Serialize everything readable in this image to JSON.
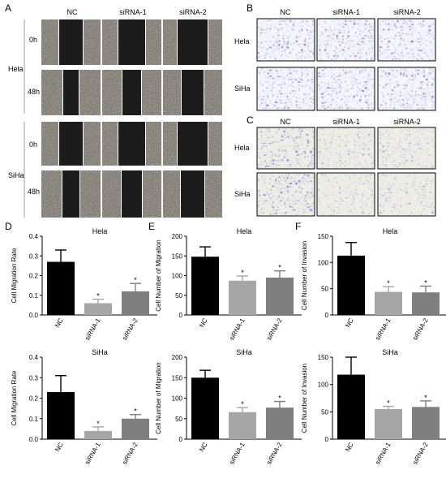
{
  "panels": {
    "A": {
      "letter": "A",
      "columns": [
        "NC",
        "siRNA-1",
        "siRNA-2"
      ],
      "rows": [
        {
          "cell_line": "Hela",
          "times": [
            "0h",
            "48h"
          ]
        },
        {
          "cell_line": "SiHa",
          "times": [
            "0h",
            "48h"
          ]
        }
      ]
    },
    "B": {
      "letter": "B",
      "columns": [
        "NC",
        "siRNA-1",
        "siRNA-2"
      ],
      "rows": [
        "Hela",
        "SiHa"
      ]
    },
    "C": {
      "letter": "C",
      "columns": [
        "NC",
        "siRNA-1",
        "siRNA-2"
      ],
      "rows": [
        "Hela",
        "SiHa"
      ]
    }
  },
  "colors": {
    "bar_nc": "#000000",
    "bar_sirna1": "#a6a6a6",
    "bar_sirna2": "#7f7f7f",
    "stain": "#3a3aa8",
    "wound_dark": "#1c1c1c",
    "wound_gray": "#6f6a63"
  },
  "chart_data": [
    {
      "panel": "D",
      "type": "bar",
      "title": "Hela",
      "ylabel": "Cell Migration Rate",
      "categories": [
        "NC",
        "siRNA-1",
        "siRNA-2"
      ],
      "values": [
        0.27,
        0.06,
        0.12
      ],
      "errors": [
        0.06,
        0.02,
        0.04
      ],
      "significance": [
        "",
        "*",
        "*"
      ],
      "ylim": [
        0,
        0.4
      ],
      "yticks": [
        "0.0",
        "0.1",
        "0.2",
        "0.3",
        "0.4"
      ]
    },
    {
      "panel": "E",
      "type": "bar",
      "title": "Hela",
      "ylabel": "Cell Number of Migration",
      "categories": [
        "NC",
        "siRNA-1",
        "siRNA-2"
      ],
      "values": [
        148,
        87,
        95
      ],
      "errors": [
        25,
        12,
        17
      ],
      "significance": [
        "",
        "*",
        "*"
      ],
      "ylim": [
        0,
        200
      ],
      "yticks": [
        "0",
        "50",
        "100",
        "150",
        "200"
      ]
    },
    {
      "panel": "F",
      "type": "bar",
      "title": "Hela",
      "ylabel": "Cell Number of Invasion",
      "categories": [
        "NC",
        "siRNA-1",
        "siRNA-2"
      ],
      "values": [
        113,
        44,
        43
      ],
      "errors": [
        25,
        10,
        12
      ],
      "significance": [
        "",
        "*",
        "*"
      ],
      "ylim": [
        0,
        150
      ],
      "yticks": [
        "0",
        "50",
        "100",
        "150"
      ]
    },
    {
      "type": "bar",
      "title": "SiHa",
      "ylabel": "Cell Migration Rate",
      "categories": [
        "NC",
        "siRNA-1",
        "siRNA-2"
      ],
      "values": [
        0.23,
        0.04,
        0.1
      ],
      "errors": [
        0.08,
        0.02,
        0.02
      ],
      "significance": [
        "",
        "*",
        "*"
      ],
      "ylim": [
        0,
        0.4
      ],
      "yticks": [
        "0.0",
        "0.1",
        "0.2",
        "0.3",
        "0.4"
      ]
    },
    {
      "type": "bar",
      "title": "SiHa",
      "ylabel": "Cell Number of Migration",
      "categories": [
        "NC",
        "siRNA-1",
        "siRNA-2"
      ],
      "values": [
        150,
        66,
        77
      ],
      "errors": [
        18,
        11,
        15
      ],
      "significance": [
        "",
        "*",
        "*"
      ],
      "ylim": [
        0,
        200
      ],
      "yticks": [
        "0",
        "50",
        "100",
        "150",
        "200"
      ]
    },
    {
      "type": "bar",
      "title": "SiHa",
      "ylabel": "Cell Number of Invasion",
      "categories": [
        "NC",
        "siRNA-1",
        "siRNA-2"
      ],
      "values": [
        118,
        55,
        59
      ],
      "errors": [
        32,
        5,
        11
      ],
      "significance": [
        "",
        "*",
        "*"
      ],
      "ylim": [
        0,
        150
      ],
      "yticks": [
        "0",
        "50",
        "100",
        "150"
      ]
    }
  ]
}
